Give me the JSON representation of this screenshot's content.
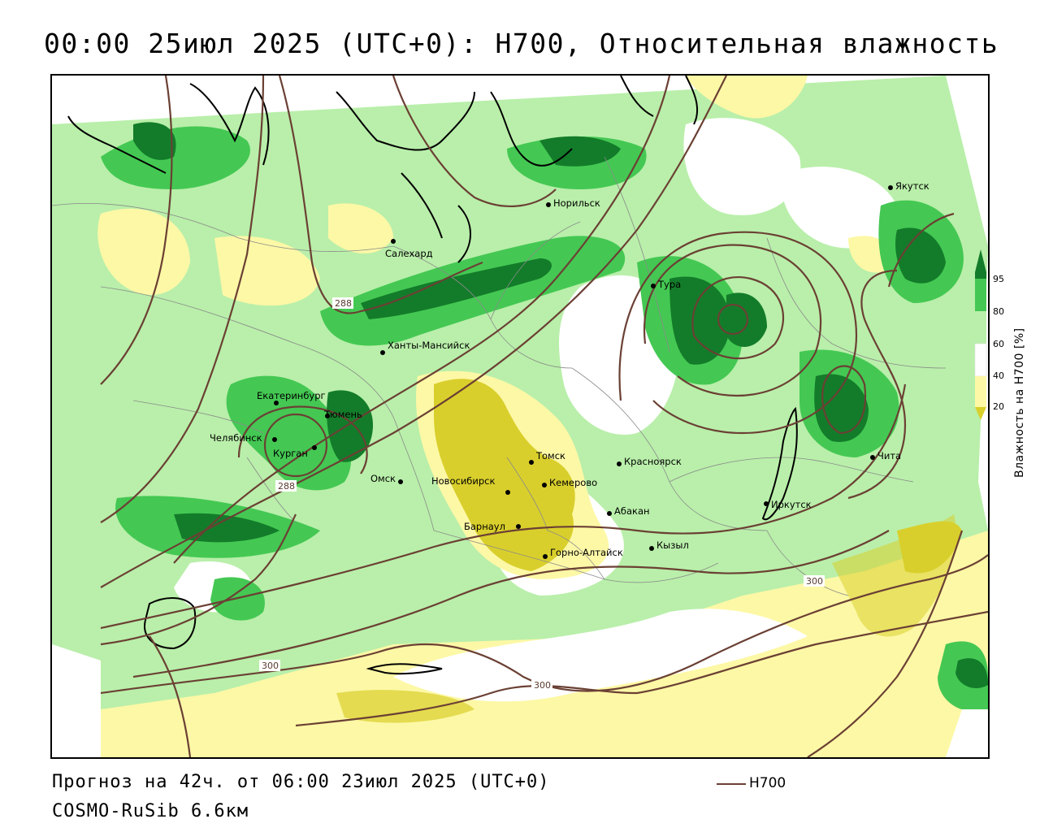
{
  "title": "00:00 25июл 2025 (UTC+0): H700, Относительная влажность",
  "colors": {
    "dry_20": "#d9cf2c",
    "dry_40": "#fdf8a6",
    "moist_60": "#b9efaa",
    "moist_80": "#44c853",
    "moist_95": "#137c2a",
    "contour": "#6b4034",
    "coast": "#000000"
  },
  "legend": {
    "title": "Влажность на H700 [%]",
    "ticks": [
      "95",
      "80",
      "60",
      "40",
      "20"
    ]
  },
  "contour_labels": [
    "288",
    "288",
    "300",
    "300",
    "300"
  ],
  "cities": [
    {
      "name": "Якутск"
    },
    {
      "name": "Норильск"
    },
    {
      "name": "Салехард"
    },
    {
      "name": "Тура"
    },
    {
      "name": "Ханты-Мансийск"
    },
    {
      "name": "Екатеринбург"
    },
    {
      "name": "Тюмень"
    },
    {
      "name": "Челябинск"
    },
    {
      "name": "Курган"
    },
    {
      "name": "Омск"
    },
    {
      "name": "Томск"
    },
    {
      "name": "Красноярск"
    },
    {
      "name": "Новосибирск"
    },
    {
      "name": "Кемерово"
    },
    {
      "name": "Абакан"
    },
    {
      "name": "Барнаул"
    },
    {
      "name": "Горно-Алтайск"
    },
    {
      "name": "Кызыл"
    },
    {
      "name": "Иркутск"
    },
    {
      "name": "Чита"
    }
  ],
  "footer": {
    "forecast": "Прогноз на 42ч. от 06:00 23июл 2025 (UTC+0)",
    "model": "COSMO-RuSib 6.6км",
    "line_legend": "H700"
  }
}
